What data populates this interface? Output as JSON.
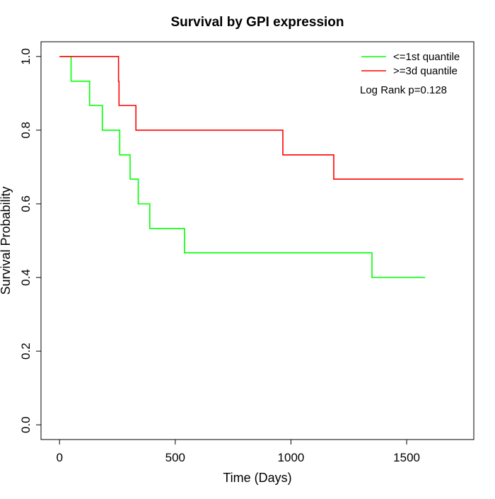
{
  "chart_data": {
    "type": "line",
    "title": "Survival by GPI expression",
    "xlabel": "Time (Days)",
    "ylabel": "Survival Probability",
    "xlim": [
      -80,
      1790
    ],
    "ylim": [
      -0.04,
      1.04
    ],
    "x_ticks": [
      0,
      500,
      1000,
      1500
    ],
    "x_tick_labels": [
      "0",
      "500",
      "1000",
      "1500"
    ],
    "y_ticks": [
      0.0,
      0.2,
      0.4,
      0.6,
      0.8,
      1.0
    ],
    "y_tick_labels": [
      "0.0",
      "0.2",
      "0.4",
      "0.6",
      "0.8",
      "1.0"
    ],
    "grid": false,
    "legend_position": "top-right",
    "annotation": "Log Rank p=0.128",
    "series": [
      {
        "name": "<=1st quantile",
        "color": "#00ff00",
        "step": true,
        "points": [
          [
            0,
            1.0
          ],
          [
            50,
            0.933
          ],
          [
            130,
            0.867
          ],
          [
            185,
            0.8
          ],
          [
            260,
            0.733
          ],
          [
            305,
            0.667
          ],
          [
            340,
            0.6
          ],
          [
            390,
            0.533
          ],
          [
            540,
            0.467
          ],
          [
            1350,
            0.4
          ],
          [
            1580,
            0.4
          ]
        ]
      },
      {
        "name": ">=3d quantile",
        "color": "#ff0000",
        "step": true,
        "points": [
          [
            0,
            1.0
          ],
          [
            255,
            0.933
          ],
          [
            257,
            0.867
          ],
          [
            330,
            0.8
          ],
          [
            965,
            0.733
          ],
          [
            1185,
            0.667
          ],
          [
            1745,
            0.667
          ]
        ]
      }
    ]
  }
}
